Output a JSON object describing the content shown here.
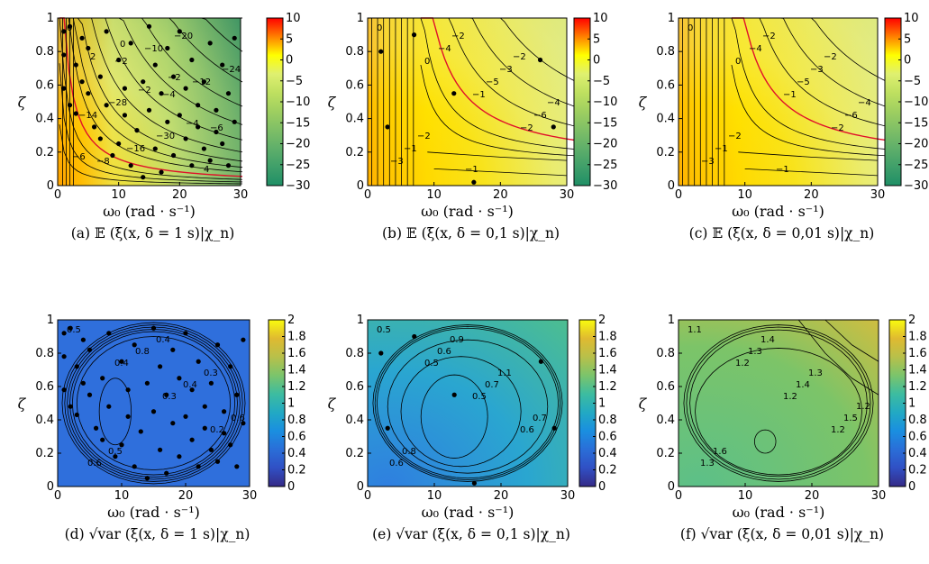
{
  "chart_data": [
    {
      "id": "a",
      "type": "contour",
      "caption": "(a) 𝔼 (ξ(x, δ = 1 s)|χ_n)",
      "xlabel": "ω₀ (rad · s⁻¹)",
      "ylabel": "ζ",
      "xlim": [
        0,
        30
      ],
      "ylim": [
        0,
        1
      ],
      "xticks": [
        "0",
        "10",
        "20",
        "30"
      ],
      "yticks": [
        "0",
        "0.2",
        "0.4",
        "0.6",
        "0.8",
        "1"
      ],
      "colormap": "summer-autumn",
      "colorbar": {
        "range": [
          -30,
          10
        ],
        "ticks": [
          "10",
          "5",
          "0",
          "−5",
          "−10",
          "−15",
          "−20",
          "−25",
          "−30"
        ]
      },
      "contour_labels": [
        "0",
        "−2",
        "−4",
        "−6",
        "−8",
        "−10",
        "−12",
        "−14",
        "−16",
        "−20",
        "−24",
        "−28",
        "−30",
        "4",
        "2",
        "−2",
        "−4",
        "−6",
        "0",
        "−2"
      ],
      "highlight_level": "0",
      "points": [
        [
          1,
          0.92
        ],
        [
          1,
          0.78
        ],
        [
          1,
          0.58
        ],
        [
          2,
          0.48
        ],
        [
          2,
          0.95
        ],
        [
          3,
          0.72
        ],
        [
          3,
          0.43
        ],
        [
          4,
          0.62
        ],
        [
          4,
          0.88
        ],
        [
          5,
          0.82
        ],
        [
          5,
          0.55
        ],
        [
          6,
          0.35
        ],
        [
          7,
          0.28
        ],
        [
          7,
          0.65
        ],
        [
          8,
          0.92
        ],
        [
          8,
          0.48
        ],
        [
          9,
          0.18
        ],
        [
          10,
          0.25
        ],
        [
          10,
          0.75
        ],
        [
          11,
          0.42
        ],
        [
          11,
          0.58
        ],
        [
          12,
          0.12
        ],
        [
          12,
          0.85
        ],
        [
          13,
          0.33
        ],
        [
          14,
          0.62
        ],
        [
          14,
          0.05
        ],
        [
          15,
          0.45
        ],
        [
          15,
          0.95
        ],
        [
          16,
          0.22
        ],
        [
          16,
          0.72
        ],
        [
          17,
          0.55
        ],
        [
          17,
          0.08
        ],
        [
          18,
          0.38
        ],
        [
          18,
          0.82
        ],
        [
          19,
          0.18
        ],
        [
          19,
          0.65
        ],
        [
          20,
          0.42
        ],
        [
          20,
          0.92
        ],
        [
          21,
          0.28
        ],
        [
          21,
          0.58
        ],
        [
          22,
          0.12
        ],
        [
          22,
          0.75
        ],
        [
          23,
          0.48
        ],
        [
          23,
          0.35
        ],
        [
          24,
          0.22
        ],
        [
          24,
          0.62
        ],
        [
          25,
          0.85
        ],
        [
          25,
          0.15
        ],
        [
          26,
          0.45
        ],
        [
          26,
          0.32
        ],
        [
          27,
          0.25
        ],
        [
          27,
          0.72
        ],
        [
          28,
          0.55
        ],
        [
          28,
          0.12
        ],
        [
          29,
          0.38
        ],
        [
          29,
          0.88
        ]
      ]
    },
    {
      "id": "b",
      "type": "contour",
      "caption": "(b) 𝔼 (ξ(x, δ = 0,1 s)|χ_n)",
      "xlabel": "ω₀ (rad · s⁻¹)",
      "ylabel": "ζ",
      "xlim": [
        0,
        30
      ],
      "ylim": [
        0,
        1
      ],
      "xticks": [
        "0",
        "10",
        "20",
        "30"
      ],
      "yticks": [
        "0",
        "0.2",
        "0.4",
        "0.6",
        "0.8",
        "1"
      ],
      "colormap": "summer-autumn",
      "colorbar": {
        "range": [
          -30,
          10
        ],
        "ticks": [
          "10",
          "5",
          "0",
          "−5",
          "−10",
          "−15",
          "−20",
          "−25",
          "−30"
        ]
      },
      "contour_labels": [
        "0",
        "0",
        "−1",
        "−2",
        "−3",
        "−4",
        "−5",
        "−6",
        "−1",
        "−2",
        "−3",
        "−4",
        "−2",
        "−1",
        "−2"
      ],
      "highlight_level": "−3",
      "points": [
        [
          2,
          0.8
        ],
        [
          3,
          0.35
        ],
        [
          7,
          0.9
        ],
        [
          13,
          0.55
        ],
        [
          16,
          0.02
        ],
        [
          26,
          0.75
        ],
        [
          28,
          0.35
        ]
      ]
    },
    {
      "id": "c",
      "type": "contour",
      "caption": "(c) 𝔼 (ξ(x, δ = 0,01 s)|χ_n)",
      "xlabel": "ω₀ (rad · s⁻¹)",
      "ylabel": "ζ",
      "xlim": [
        0,
        30
      ],
      "ylim": [
        0,
        1
      ],
      "xticks": [
        "0",
        "10",
        "20",
        "30"
      ],
      "yticks": [
        "0",
        "0.2",
        "0.4",
        "0.6",
        "0.8",
        "1"
      ],
      "colormap": "summer-autumn",
      "colorbar": {
        "range": [
          -30,
          10
        ],
        "ticks": [
          "10",
          "5",
          "0",
          "−5",
          "−10",
          "−15",
          "−20",
          "−25",
          "−30"
        ]
      },
      "contour_labels": [
        "0",
        "0",
        "−1",
        "−2",
        "−3",
        "−4",
        "−5",
        "−6",
        "−1",
        "−2",
        "−3",
        "−4",
        "−2",
        "−1",
        "−2"
      ],
      "highlight_level": "−3",
      "points": []
    },
    {
      "id": "d",
      "type": "contour",
      "caption": "(d) √var (ξ(x, δ = 1 s)|χ_n)",
      "xlabel": "ω₀ (rad · s⁻¹)",
      "ylabel": "ζ",
      "xlim": [
        0,
        30
      ],
      "ylim": [
        0,
        1
      ],
      "xticks": [
        "0",
        "10",
        "20",
        "30"
      ],
      "yticks": [
        "0",
        "0.2",
        "0.4",
        "0.6",
        "0.8",
        "1"
      ],
      "colormap": "parula",
      "colorbar": {
        "range": [
          0,
          2
        ],
        "ticks": [
          "2",
          "1.8",
          "1.6",
          "1.4",
          "1.2",
          "1",
          "0.8",
          "0.6",
          "0.4",
          "0.2",
          "0"
        ]
      },
      "contour_labels": [
        "0.5",
        "0.4",
        "0.3",
        "0.2",
        "0.6",
        "0.8",
        "0.4",
        "0.6",
        "0.5",
        "0.4",
        "0.3"
      ],
      "points": [
        [
          1,
          0.92
        ],
        [
          1,
          0.78
        ],
        [
          1,
          0.58
        ],
        [
          2,
          0.48
        ],
        [
          2,
          0.95
        ],
        [
          3,
          0.72
        ],
        [
          3,
          0.43
        ],
        [
          4,
          0.62
        ],
        [
          4,
          0.88
        ],
        [
          5,
          0.82
        ],
        [
          5,
          0.55
        ],
        [
          6,
          0.35
        ],
        [
          7,
          0.28
        ],
        [
          7,
          0.65
        ],
        [
          8,
          0.92
        ],
        [
          8,
          0.48
        ],
        [
          9,
          0.18
        ],
        [
          10,
          0.25
        ],
        [
          10,
          0.75
        ],
        [
          11,
          0.42
        ],
        [
          11,
          0.58
        ],
        [
          12,
          0.12
        ],
        [
          12,
          0.85
        ],
        [
          13,
          0.33
        ],
        [
          14,
          0.62
        ],
        [
          14,
          0.05
        ],
        [
          15,
          0.45
        ],
        [
          15,
          0.95
        ],
        [
          16,
          0.22
        ],
        [
          16,
          0.72
        ],
        [
          17,
          0.55
        ],
        [
          17,
          0.08
        ],
        [
          18,
          0.38
        ],
        [
          18,
          0.82
        ],
        [
          19,
          0.18
        ],
        [
          19,
          0.65
        ],
        [
          20,
          0.42
        ],
        [
          20,
          0.92
        ],
        [
          21,
          0.28
        ],
        [
          21,
          0.58
        ],
        [
          22,
          0.12
        ],
        [
          22,
          0.75
        ],
        [
          23,
          0.48
        ],
        [
          23,
          0.35
        ],
        [
          24,
          0.22
        ],
        [
          24,
          0.62
        ],
        [
          25,
          0.85
        ],
        [
          25,
          0.15
        ],
        [
          26,
          0.45
        ],
        [
          26,
          0.32
        ],
        [
          27,
          0.25
        ],
        [
          27,
          0.72
        ],
        [
          28,
          0.55
        ],
        [
          28,
          0.12
        ],
        [
          29,
          0.38
        ],
        [
          29,
          0.88
        ]
      ]
    },
    {
      "id": "e",
      "type": "contour",
      "caption": "(e) √var (ξ(x, δ = 0,1 s)|χ_n)",
      "xlabel": "ω₀ (rad · s⁻¹)",
      "ylabel": "ζ",
      "xlim": [
        0,
        30
      ],
      "ylim": [
        0,
        1
      ],
      "xticks": [
        "0",
        "10",
        "20",
        "30"
      ],
      "yticks": [
        "0",
        "0.2",
        "0.4",
        "0.6",
        "0.8",
        "1"
      ],
      "colormap": "parula",
      "colorbar": {
        "range": [
          0,
          2
        ],
        "ticks": [
          "2",
          "1.8",
          "1.6",
          "1.4",
          "1.2",
          "1",
          "0.8",
          "0.6",
          "0.4",
          "0.2",
          "0"
        ]
      },
      "contour_labels": [
        "0.5",
        "0.5",
        "0.5",
        "0.6",
        "0.6",
        "0.6",
        "0.7",
        "0.7",
        "0.8",
        "0.9",
        "1.1"
      ],
      "points": [
        [
          2,
          0.8
        ],
        [
          3,
          0.35
        ],
        [
          7,
          0.9
        ],
        [
          13,
          0.55
        ],
        [
          16,
          0.02
        ],
        [
          26,
          0.75
        ],
        [
          28,
          0.35
        ]
      ]
    },
    {
      "id": "f",
      "type": "contour",
      "caption": "(f) √var (ξ(x, δ = 0,01 s)|χ_n)",
      "xlabel": "ω₀ (rad · s⁻¹)",
      "ylabel": "ζ",
      "xlim": [
        0,
        30
      ],
      "ylim": [
        0,
        1
      ],
      "xticks": [
        "0",
        "10",
        "20",
        "30"
      ],
      "yticks": [
        "0",
        "0.2",
        "0.4",
        "0.6",
        "0.8",
        "1"
      ],
      "colormap": "parula",
      "colorbar": {
        "range": [
          0,
          2
        ],
        "ticks": [
          "2",
          "1.8",
          "1.6",
          "1.4",
          "1.2",
          "1",
          "0.8",
          "0.6",
          "0.4",
          "0.2",
          "0"
        ]
      },
      "contour_labels": [
        "1.1",
        "1.2",
        "1.2",
        "1.2",
        "1.3",
        "1.3",
        "1.4",
        "1.5",
        "1.6",
        "1.4",
        "1.3",
        "1.2"
      ],
      "points": []
    }
  ]
}
